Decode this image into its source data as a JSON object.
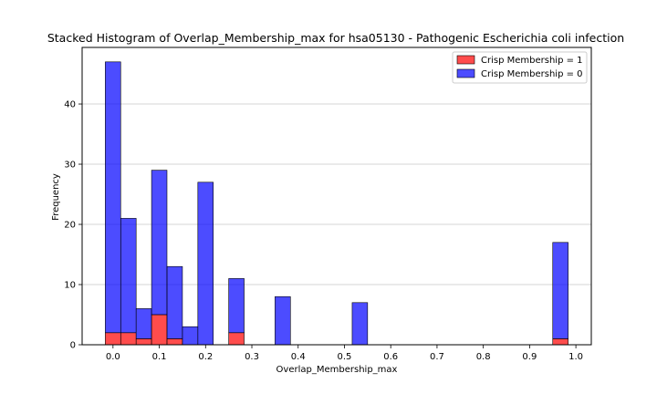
{
  "chart_data": {
    "type": "bar",
    "stacked": true,
    "title": "Stacked Histogram of Overlap_Membership_max for hsa05130 - Pathogenic Escherichia coli infection",
    "xlabel": "Overlap_Membership_max",
    "ylabel": "Frequency",
    "xlim": [
      -0.0667,
      1.0333
    ],
    "ylim": [
      0,
      49.4
    ],
    "x_ticks": [
      0.0,
      0.1,
      0.2,
      0.3,
      0.4,
      0.5,
      0.6,
      0.7,
      0.8,
      0.9,
      1.0
    ],
    "x_tick_labels": [
      "0.0",
      "0.1",
      "0.2",
      "0.3",
      "0.4",
      "0.5",
      "0.6",
      "0.7",
      "0.8",
      "0.9",
      "1.0"
    ],
    "y_ticks": [
      0,
      10,
      20,
      30,
      40
    ],
    "y_tick_labels": [
      "0",
      "10",
      "20",
      "30",
      "40"
    ],
    "grid": {
      "x": false,
      "y": true
    },
    "legend_position": "top-right",
    "bin_width": 0.0333,
    "bin_starts": [
      -0.0167,
      0.0167,
      0.05,
      0.0833,
      0.1167,
      0.15,
      0.1833,
      0.25,
      0.35,
      0.5167,
      0.95
    ],
    "series": [
      {
        "name": "Crisp Membership = 1",
        "color": "#ff0000",
        "values": [
          2,
          2,
          1,
          5,
          1,
          0,
          0,
          2,
          0,
          0,
          1
        ]
      },
      {
        "name": "Crisp Membership = 0",
        "color": "#0000ff",
        "values": [
          45,
          19,
          5,
          24,
          12,
          3,
          27,
          9,
          8,
          7,
          16
        ]
      }
    ]
  }
}
